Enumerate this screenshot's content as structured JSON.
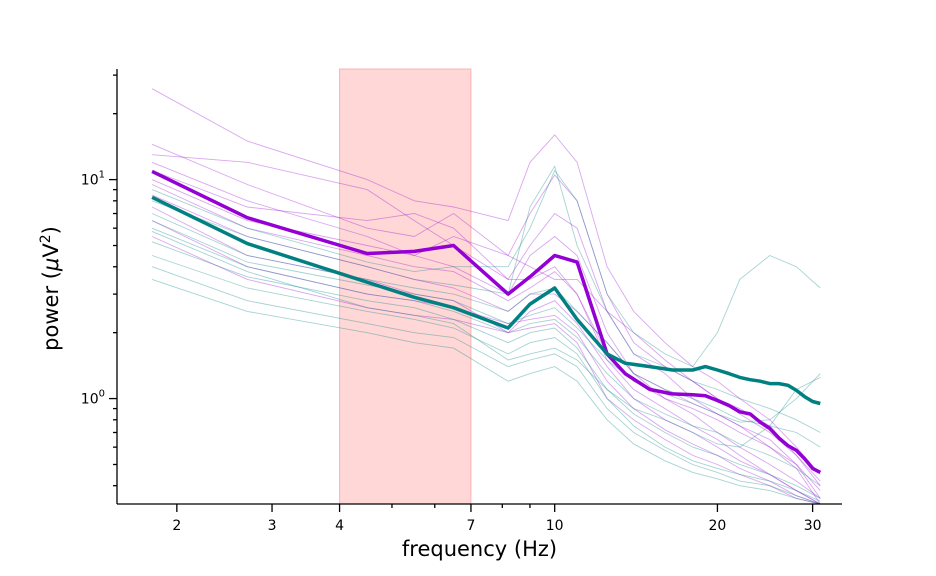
{
  "chart_data": {
    "type": "line",
    "title": "",
    "xlabel": "frequency (Hz)",
    "ylabel_text": "power (",
    "ylabel_mu": "μ",
    "ylabel_unit": "V",
    "ylabel_exp": "2",
    "ylabel_close": ")",
    "xscale": "log",
    "yscale": "log",
    "xlim": [
      1.55,
      34
    ],
    "ylim": [
      0.33,
      32
    ],
    "grid": false,
    "legend": "none",
    "band": {
      "x": [
        4,
        7
      ],
      "color": "#ff9a9a"
    },
    "x_ticks": [
      {
        "value": 2,
        "label": "2"
      },
      {
        "value": 3,
        "label": "3"
      },
      {
        "value": 4,
        "label": "4"
      },
      {
        "value": 7,
        "label": "7"
      },
      {
        "value": 10,
        "label": "10"
      },
      {
        "value": 20,
        "label": "20"
      },
      {
        "value": 30,
        "label": "30"
      }
    ],
    "y_ticks": [
      {
        "value": 1,
        "label_base": "10",
        "label_exp": "0"
      },
      {
        "value": 10,
        "label_base": "10",
        "label_exp": "1"
      }
    ],
    "colors": {
      "purple": "#9400d3",
      "teal": "#008080"
    },
    "x": [
      1.8,
      2.7,
      4.5,
      5.5,
      6.5,
      8.2,
      9.0,
      10.0,
      11.0,
      12.5,
      13.5,
      15.0,
      16.5,
      18.0,
      19.0,
      20.0,
      21.0,
      22.0,
      23.0,
      24.0,
      25.0,
      26.0,
      27.0,
      28.0,
      29.0,
      30.0,
      31.0
    ],
    "series": [
      {
        "color": "purple",
        "values": [
          10.9,
          6.7,
          4.6,
          4.7,
          5.0,
          3.0,
          3.6,
          4.5,
          4.2,
          1.6,
          1.3,
          1.1,
          1.05,
          1.04,
          1.03,
          0.98,
          0.93,
          0.87,
          0.85,
          0.78,
          0.73,
          0.66,
          0.61,
          0.58,
          0.53,
          0.48,
          0.46
        ]
      },
      {
        "color": "teal",
        "values": [
          8.3,
          5.1,
          3.4,
          2.9,
          2.6,
          2.1,
          2.7,
          3.2,
          2.3,
          1.6,
          1.45,
          1.4,
          1.35,
          1.35,
          1.4,
          1.35,
          1.3,
          1.25,
          1.22,
          1.2,
          1.17,
          1.17,
          1.15,
          1.09,
          1.02,
          0.97,
          0.95
        ]
      }
    ],
    "subject_x": [
      1.8,
      2.7,
      4.5,
      5.5,
      6.5,
      8.2,
      9.0,
      10.0,
      11.0,
      12.5,
      14.0,
      16.0,
      18.0,
      20.0,
      22.0,
      25.0,
      28.0,
      31.0
    ],
    "subject_series": [
      {
        "color": "purple",
        "values": [
          26.0,
          15.0,
          10.0,
          8.0,
          7.5,
          6.5,
          12.0,
          16.0,
          12.0,
          4.0,
          2.5,
          1.8,
          1.4,
          1.2,
          1.0,
          0.8,
          0.6,
          0.45
        ]
      },
      {
        "color": "purple",
        "values": [
          14.5,
          9.5,
          6.0,
          5.5,
          7.0,
          4.5,
          7.0,
          10.5,
          8.0,
          3.0,
          1.8,
          1.4,
          1.2,
          1.0,
          0.9,
          0.75,
          0.55,
          0.4
        ]
      },
      {
        "color": "purple",
        "values": [
          13.0,
          12.0,
          9.0,
          6.5,
          5.0,
          3.5,
          5.0,
          7.0,
          6.0,
          2.5,
          1.6,
          1.3,
          1.0,
          0.85,
          0.75,
          0.65,
          0.5,
          0.38
        ]
      },
      {
        "color": "purple",
        "values": [
          12.0,
          8.0,
          5.5,
          4.5,
          4.0,
          3.0,
          4.5,
          5.5,
          4.5,
          2.0,
          1.3,
          1.1,
          0.95,
          0.85,
          0.75,
          0.6,
          0.5,
          0.35
        ]
      },
      {
        "color": "purple",
        "values": [
          11.0,
          7.5,
          6.5,
          7.0,
          6.0,
          3.5,
          3.5,
          4.0,
          3.0,
          1.6,
          1.2,
          1.0,
          0.9,
          0.8,
          0.7,
          0.6,
          0.48,
          0.33
        ]
      },
      {
        "color": "purple",
        "values": [
          10.0,
          6.5,
          5.0,
          4.5,
          5.5,
          4.5,
          4.0,
          3.5,
          3.5,
          2.5,
          2.0,
          1.5,
          1.2,
          1.0,
          0.85,
          0.7,
          0.55,
          0.42
        ]
      },
      {
        "color": "purple",
        "values": [
          9.5,
          6.0,
          4.5,
          4.0,
          3.8,
          2.8,
          3.2,
          3.8,
          3.0,
          1.5,
          1.1,
          0.9,
          0.75,
          0.65,
          0.55,
          0.45,
          0.38,
          0.33
        ]
      },
      {
        "color": "purple",
        "values": [
          8.5,
          5.5,
          4.0,
          3.5,
          3.2,
          2.5,
          3.0,
          3.0,
          2.5,
          1.8,
          1.3,
          1.0,
          0.85,
          0.7,
          0.6,
          0.5,
          0.42,
          0.35
        ]
      },
      {
        "color": "purple",
        "values": [
          7.5,
          4.5,
          3.5,
          3.0,
          2.8,
          2.0,
          2.5,
          2.8,
          2.2,
          1.4,
          1.0,
          0.8,
          0.7,
          0.6,
          0.52,
          0.45,
          0.38,
          0.33
        ]
      },
      {
        "color": "purple",
        "values": [
          6.5,
          4.0,
          3.0,
          2.8,
          2.6,
          2.2,
          2.3,
          2.4,
          2.0,
          1.2,
          0.9,
          0.72,
          0.62,
          0.55,
          0.48,
          0.42,
          0.36,
          0.33
        ]
      },
      {
        "color": "purple",
        "values": [
          5.5,
          3.5,
          2.6,
          2.4,
          2.3,
          2.0,
          2.1,
          2.2,
          1.8,
          1.0,
          0.8,
          0.65,
          0.55,
          0.5,
          0.45,
          0.4,
          0.35,
          0.33
        ]
      },
      {
        "color": "teal",
        "values": [
          9.0,
          6.0,
          4.2,
          3.8,
          4.0,
          4.0,
          6.0,
          11.0,
          8.0,
          3.0,
          2.0,
          1.6,
          1.4,
          2.0,
          3.5,
          4.5,
          4.0,
          3.2
        ]
      },
      {
        "color": "teal",
        "values": [
          8.0,
          5.5,
          4.0,
          3.5,
          3.3,
          3.0,
          7.5,
          11.5,
          5.0,
          2.5,
          1.6,
          1.4,
          1.2,
          1.1,
          1.0,
          0.9,
          0.8,
          0.7
        ]
      },
      {
        "color": "teal",
        "values": [
          7.0,
          4.5,
          3.5,
          3.2,
          3.0,
          2.5,
          3.0,
          3.2,
          2.5,
          1.8,
          1.3,
          1.1,
          1.0,
          0.9,
          0.8,
          0.75,
          0.7,
          0.6
        ]
      },
      {
        "color": "teal",
        "values": [
          6.5,
          4.2,
          3.3,
          3.0,
          2.8,
          2.2,
          2.4,
          2.6,
          2.1,
          1.5,
          1.2,
          1.05,
          0.95,
          0.85,
          0.78,
          0.8,
          1.0,
          1.3
        ]
      },
      {
        "color": "teal",
        "values": [
          6.0,
          4.0,
          3.0,
          2.8,
          2.5,
          2.0,
          2.2,
          2.3,
          1.9,
          1.3,
          1.0,
          0.85,
          0.75,
          0.7,
          0.62,
          0.55,
          0.48,
          0.4
        ]
      },
      {
        "color": "teal",
        "values": [
          5.2,
          3.6,
          2.8,
          2.6,
          2.3,
          1.8,
          2.0,
          2.1,
          1.7,
          1.1,
          0.85,
          0.7,
          0.6,
          0.55,
          0.5,
          0.45,
          0.4,
          0.35
        ]
      },
      {
        "color": "teal",
        "values": [
          4.5,
          3.2,
          2.5,
          2.3,
          2.1,
          1.6,
          1.8,
          1.9,
          1.6,
          1.0,
          0.75,
          0.6,
          0.52,
          0.48,
          0.45,
          0.42,
          0.38,
          0.34
        ]
      },
      {
        "color": "teal",
        "values": [
          4.0,
          2.8,
          2.2,
          2.0,
          1.9,
          1.4,
          1.5,
          1.6,
          1.4,
          0.9,
          0.7,
          0.58,
          0.5,
          0.46,
          0.42,
          0.4,
          0.36,
          0.33
        ]
      },
      {
        "color": "teal",
        "values": [
          3.5,
          2.5,
          2.0,
          1.8,
          1.7,
          1.2,
          1.3,
          1.4,
          1.2,
          0.8,
          0.62,
          0.52,
          0.46,
          0.43,
          0.4,
          0.38,
          0.35,
          0.33
        ]
      },
      {
        "color": "teal",
        "values": [
          5.8,
          3.8,
          2.6,
          2.4,
          2.2,
          1.5,
          1.6,
          1.7,
          1.5,
          1.1,
          0.9,
          0.8,
          0.7,
          0.62,
          0.6,
          0.75,
          1.1,
          1.25
        ]
      }
    ]
  }
}
